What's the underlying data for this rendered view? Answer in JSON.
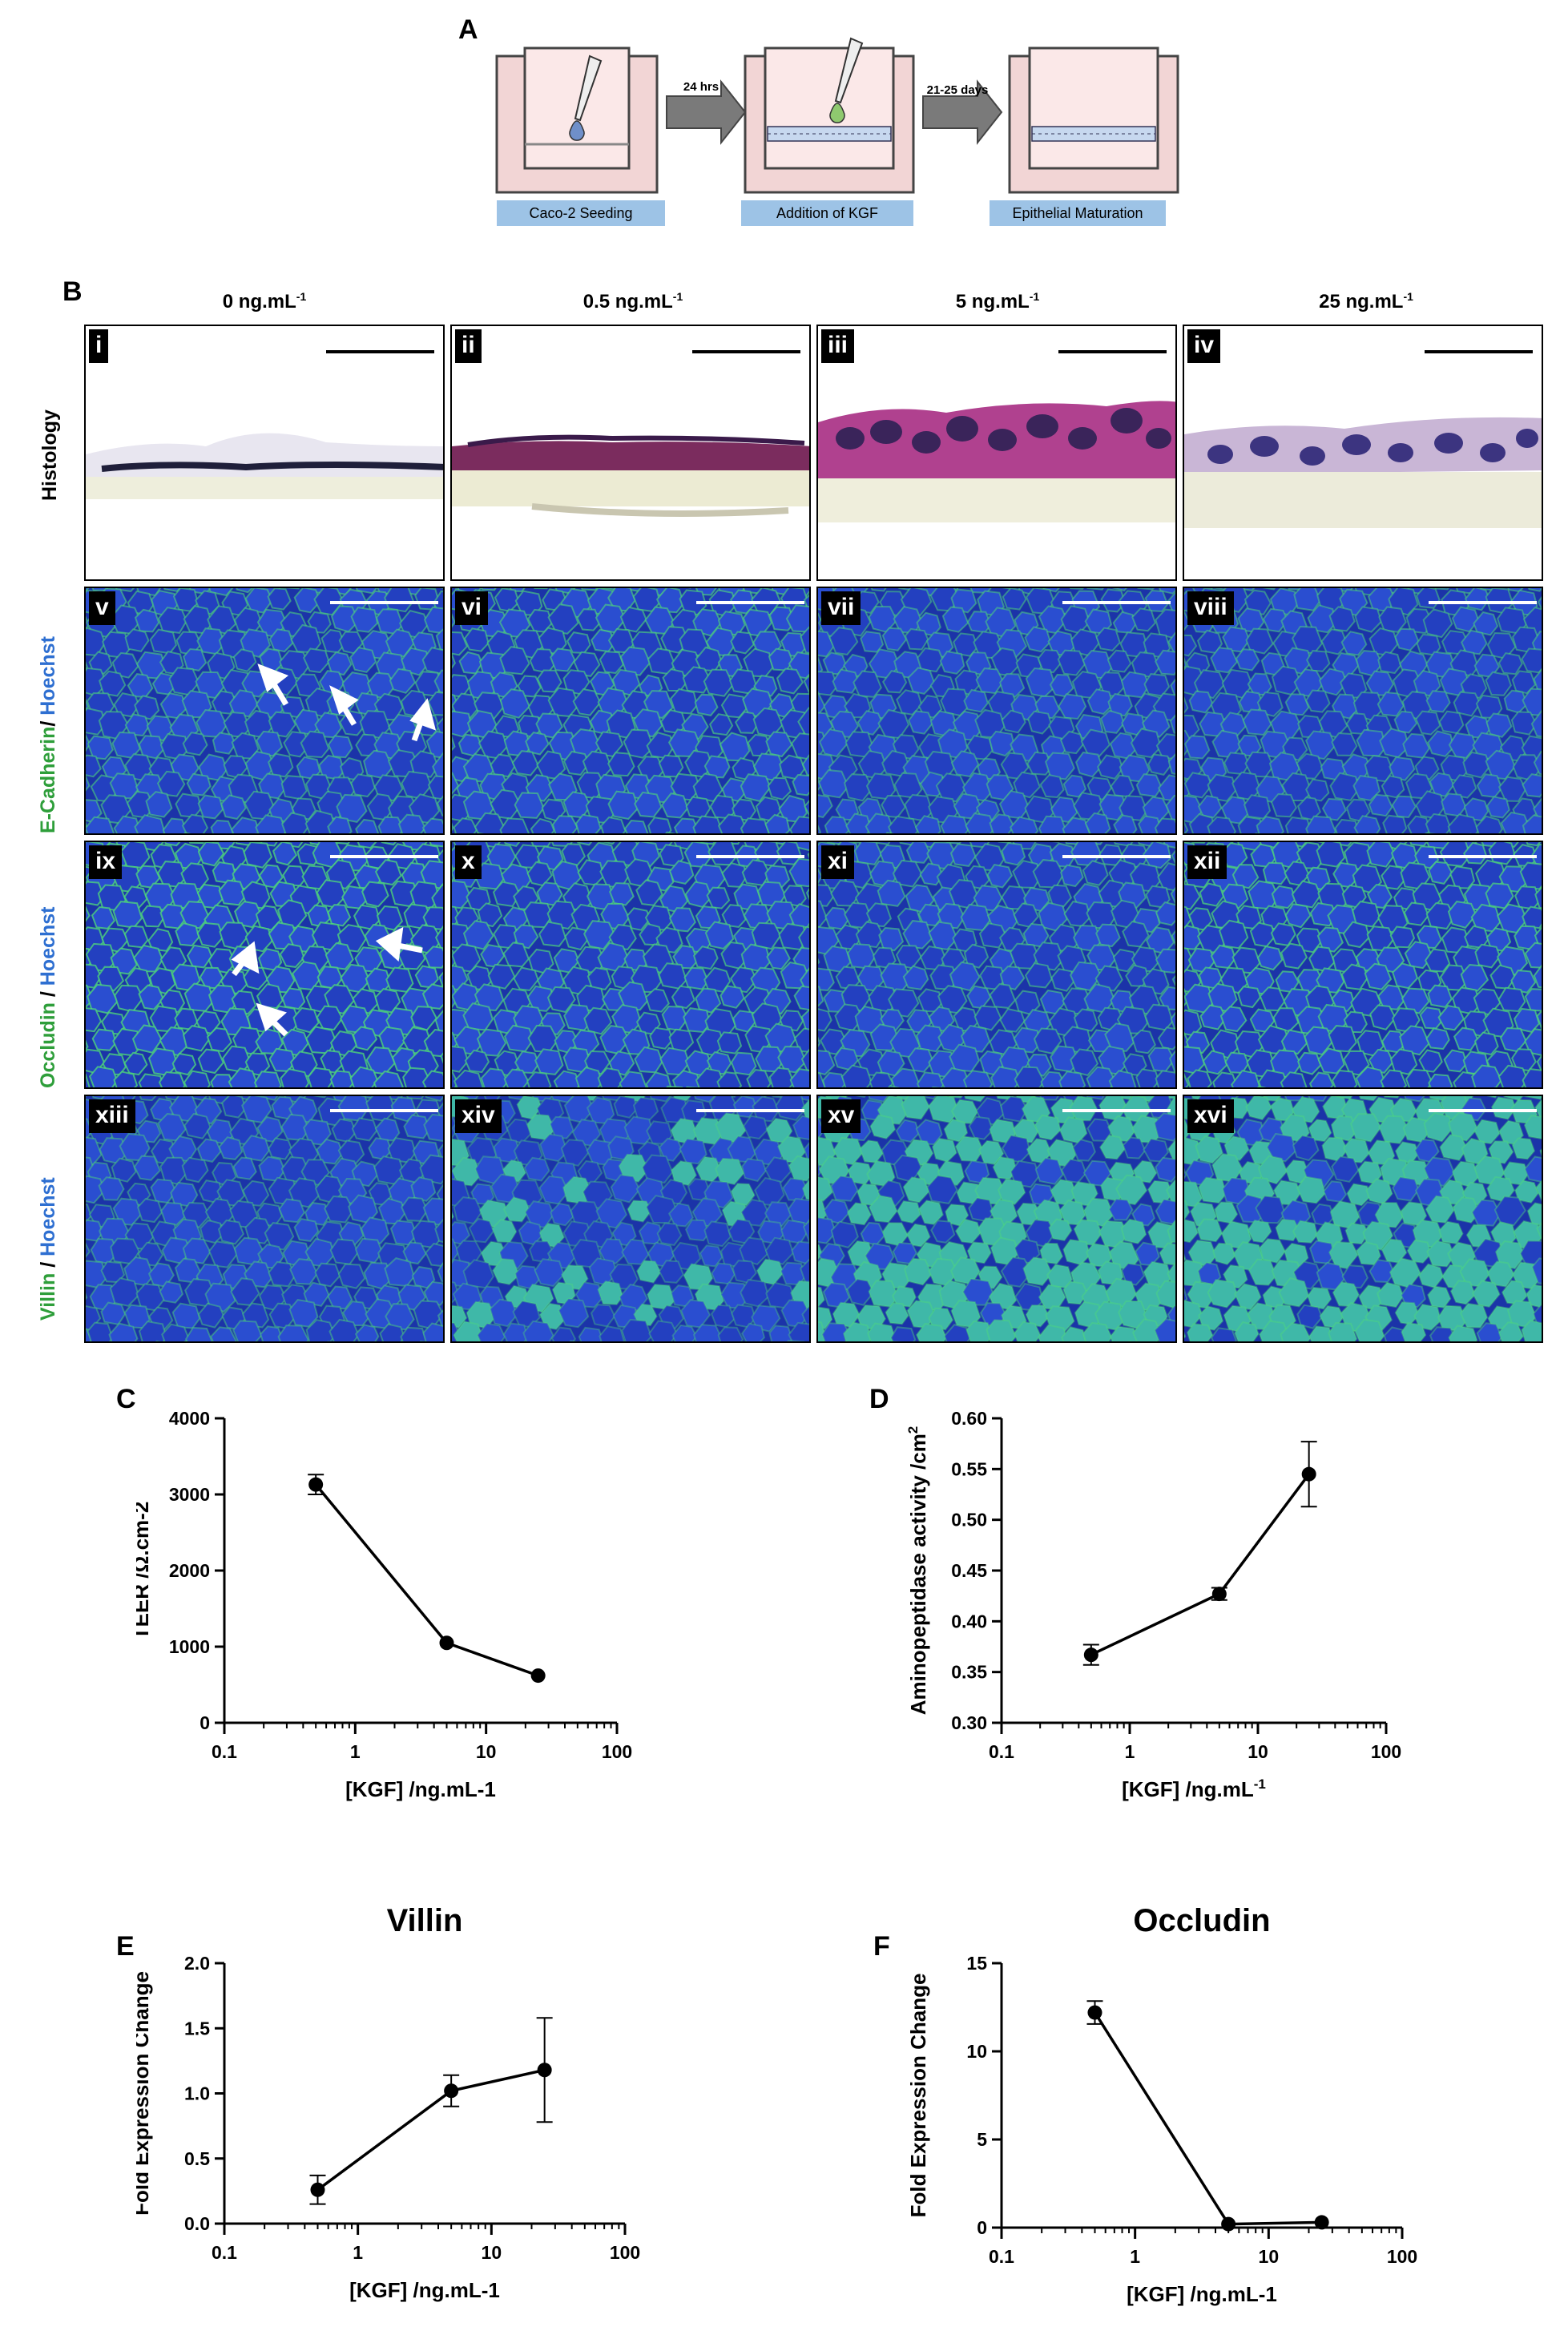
{
  "panel_letters": {
    "a": "A",
    "b": "B",
    "c": "C",
    "d": "D",
    "e": "E",
    "f": "F"
  },
  "panelA": {
    "steps": [
      "Caco-2 Seeding",
      "Addition of KGF",
      "Epithelial Maturation"
    ],
    "arrows": [
      "24 hrs",
      "21-25 days"
    ]
  },
  "panelB": {
    "columns": [
      "0 ng.mL",
      "0.5 ng.mL",
      "5 ng.mL",
      "25 ng.mL"
    ],
    "column_unit_exp": "-1",
    "rows": [
      {
        "label_parts": [
          {
            "text": "Histology",
            "color": "#000000"
          }
        ]
      },
      {
        "label_parts": [
          {
            "text": "E-Cadherin",
            "color": "#2e9e3a"
          },
          {
            "text": "/ ",
            "color": "#000000"
          },
          {
            "text": "Hoechst",
            "color": "#2e6fd1"
          }
        ]
      },
      {
        "label_parts": [
          {
            "text": "Occludin",
            "color": "#2e9e3a"
          },
          {
            "text": " / ",
            "color": "#000000"
          },
          {
            "text": "Hoechst",
            "color": "#2e6fd1"
          }
        ]
      },
      {
        "label_parts": [
          {
            "text": "Villin",
            "color": "#2e9e3a"
          },
          {
            "text": " / ",
            "color": "#000000"
          },
          {
            "text": "Hoechst",
            "color": "#2e6fd1"
          }
        ]
      }
    ],
    "tiles": [
      "i",
      "ii",
      "iii",
      "iv",
      "v",
      "vi",
      "vii",
      "viii",
      "ix",
      "x",
      "xi",
      "xii",
      "xiii",
      "xiv",
      "xv",
      "xvi"
    ]
  },
  "chart_data": [
    {
      "id": "C",
      "type": "line",
      "title": "",
      "xlabel": "[KGF] /ng.mL-1",
      "ylabel": "TEER /Ω.cm-2",
      "xscale": "log",
      "xlim": [
        0.1,
        100
      ],
      "xticks": [
        "0.1",
        "1",
        "10",
        "100"
      ],
      "ylim": [
        0,
        4000
      ],
      "yticks": [
        0,
        1000,
        2000,
        3000,
        4000
      ],
      "series": [
        {
          "x": [
            0.5,
            5,
            25
          ],
          "y": [
            3130,
            1050,
            620
          ],
          "err": [
            130,
            0,
            0
          ]
        }
      ]
    },
    {
      "id": "D",
      "type": "line",
      "title": "",
      "xlabel": "[KGF] /ng.mL",
      "ylabel": "Aminopeptidase activity /cm",
      "ylabel_sup": "2",
      "xlabel_sup": "-1",
      "xscale": "log",
      "xlim": [
        0.1,
        100
      ],
      "xticks": [
        "0.1",
        "1",
        "10",
        "100"
      ],
      "ylim": [
        0.3,
        0.6
      ],
      "yticks": [
        "0.30",
        "0.35",
        "0.40",
        "0.45",
        "0.50",
        "0.55",
        "0.60"
      ],
      "series": [
        {
          "x": [
            0.5,
            5,
            25
          ],
          "y": [
            0.367,
            0.427,
            0.545
          ],
          "err": [
            0.01,
            0.006,
            0.032
          ]
        }
      ]
    },
    {
      "id": "E",
      "type": "line",
      "title": "Villin",
      "xlabel": "[KGF] /ng.mL-1",
      "ylabel": "Fold Expression Change",
      "xscale": "log",
      "xlim": [
        0.1,
        100
      ],
      "xticks": [
        "0.1",
        "1",
        "10",
        "100"
      ],
      "ylim": [
        0,
        2
      ],
      "yticks": [
        "0.0",
        "0.5",
        "1.0",
        "1.5",
        "2.0"
      ],
      "series": [
        {
          "x": [
            0.5,
            5,
            25
          ],
          "y": [
            0.26,
            1.02,
            1.18
          ],
          "err": [
            0.11,
            0.12,
            0.4
          ]
        }
      ]
    },
    {
      "id": "F",
      "type": "line",
      "title": "Occludin",
      "xlabel": "[KGF] /ng.mL-1",
      "ylabel": "Fold Expression Change",
      "xscale": "log",
      "xlim": [
        0.1,
        100
      ],
      "xticks": [
        "0.1",
        "1",
        "10",
        "100"
      ],
      "ylim": [
        0,
        15
      ],
      "yticks": [
        "0",
        "5",
        "10",
        "15"
      ],
      "series": [
        {
          "x": [
            0.5,
            5,
            25
          ],
          "y": [
            12.2,
            0.2,
            0.3
          ],
          "err": [
            0.65,
            0,
            0
          ]
        }
      ]
    }
  ]
}
